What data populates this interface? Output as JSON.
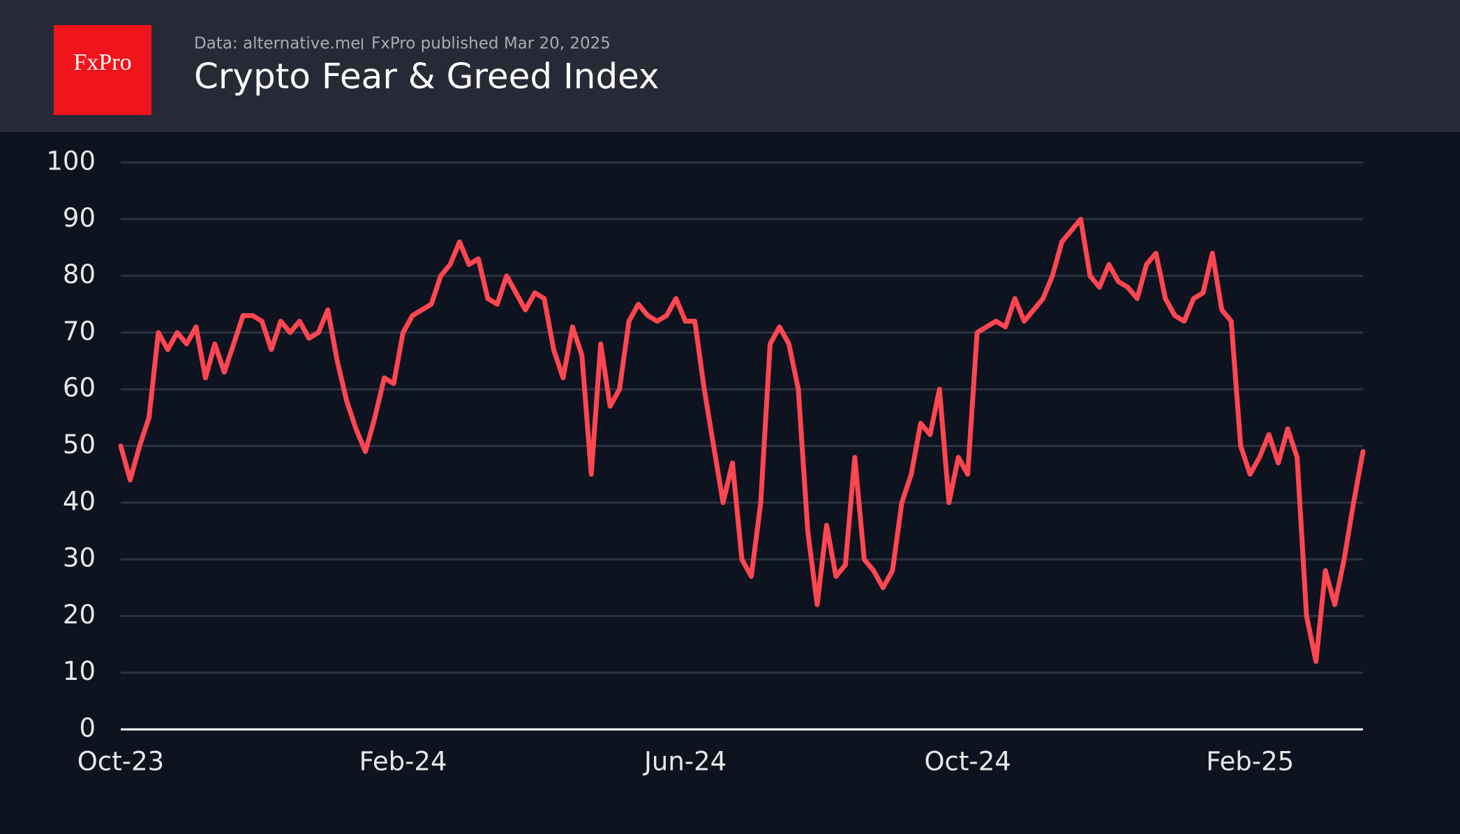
{
  "logo": "FxPro",
  "chart_data": {
    "type": "line",
    "source": "Data: alternative.me",
    "publisher": "FxPro published Mar 20, 2025",
    "title": "Crypto Fear & Greed Index",
    "x": [
      "Oct-23",
      null,
      null,
      null,
      null,
      null,
      null,
      null,
      null,
      null,
      null,
      null,
      null,
      null,
      null,
      null,
      null,
      null,
      null,
      null,
      null,
      null,
      null,
      null,
      null,
      null,
      null,
      null,
      null,
      null,
      "Feb-24",
      null,
      null,
      null,
      null,
      null,
      null,
      null,
      null,
      null,
      null,
      null,
      null,
      null,
      null,
      null,
      null,
      null,
      null,
      null,
      null,
      null,
      null,
      null,
      null,
      null,
      null,
      null,
      null,
      null,
      "Jun-24",
      null,
      null,
      null,
      null,
      null,
      null,
      null,
      null,
      null,
      null,
      null,
      null,
      null,
      null,
      null,
      null,
      null,
      null,
      null,
      null,
      null,
      null,
      null,
      null,
      null,
      null,
      null,
      null,
      null,
      "Oct-24",
      null,
      null,
      null,
      null,
      null,
      null,
      null,
      null,
      null,
      null,
      null,
      null,
      null,
      null,
      null,
      null,
      null,
      null,
      null,
      null,
      null,
      null,
      null,
      null,
      null,
      null,
      null,
      null,
      null,
      "Feb-25",
      null,
      null,
      null,
      null,
      null,
      null,
      null,
      null,
      null,
      null,
      null,
      null
    ],
    "series": [
      {
        "name": "Crypto Fear & Greed Index",
        "color": "#ff4651",
        "values": [
          50,
          44,
          50,
          55,
          70,
          67,
          70,
          68,
          71,
          62,
          68,
          63,
          68,
          73,
          73,
          72,
          67,
          72,
          70,
          72,
          69,
          70,
          74,
          65,
          58,
          53,
          49,
          55,
          62,
          61,
          70,
          73,
          74,
          75,
          80,
          82,
          86,
          82,
          83,
          76,
          75,
          80,
          77,
          74,
          77,
          76,
          67,
          62,
          71,
          66,
          45,
          68,
          57,
          60,
          72,
          75,
          73,
          72,
          73,
          76,
          72,
          72,
          60,
          50,
          40,
          47,
          30,
          27,
          40,
          68,
          71,
          68,
          60,
          35,
          22,
          36,
          27,
          29,
          48,
          30,
          28,
          25,
          28,
          40,
          45,
          54,
          52,
          60,
          40,
          48,
          45,
          70,
          71,
          72,
          71,
          76,
          72,
          74,
          76,
          80,
          86,
          88,
          90,
          80,
          78,
          82,
          79,
          78,
          76,
          82,
          84,
          76,
          73,
          72,
          76,
          77,
          84,
          74,
          72,
          50,
          45,
          48,
          52,
          47,
          53,
          48,
          20,
          12,
          28,
          22,
          30,
          40,
          49
        ]
      }
    ],
    "ylim": [
      0,
      100
    ],
    "yticks": [
      0,
      10,
      20,
      30,
      40,
      50,
      60,
      70,
      80,
      90,
      100
    ],
    "grid": true
  }
}
